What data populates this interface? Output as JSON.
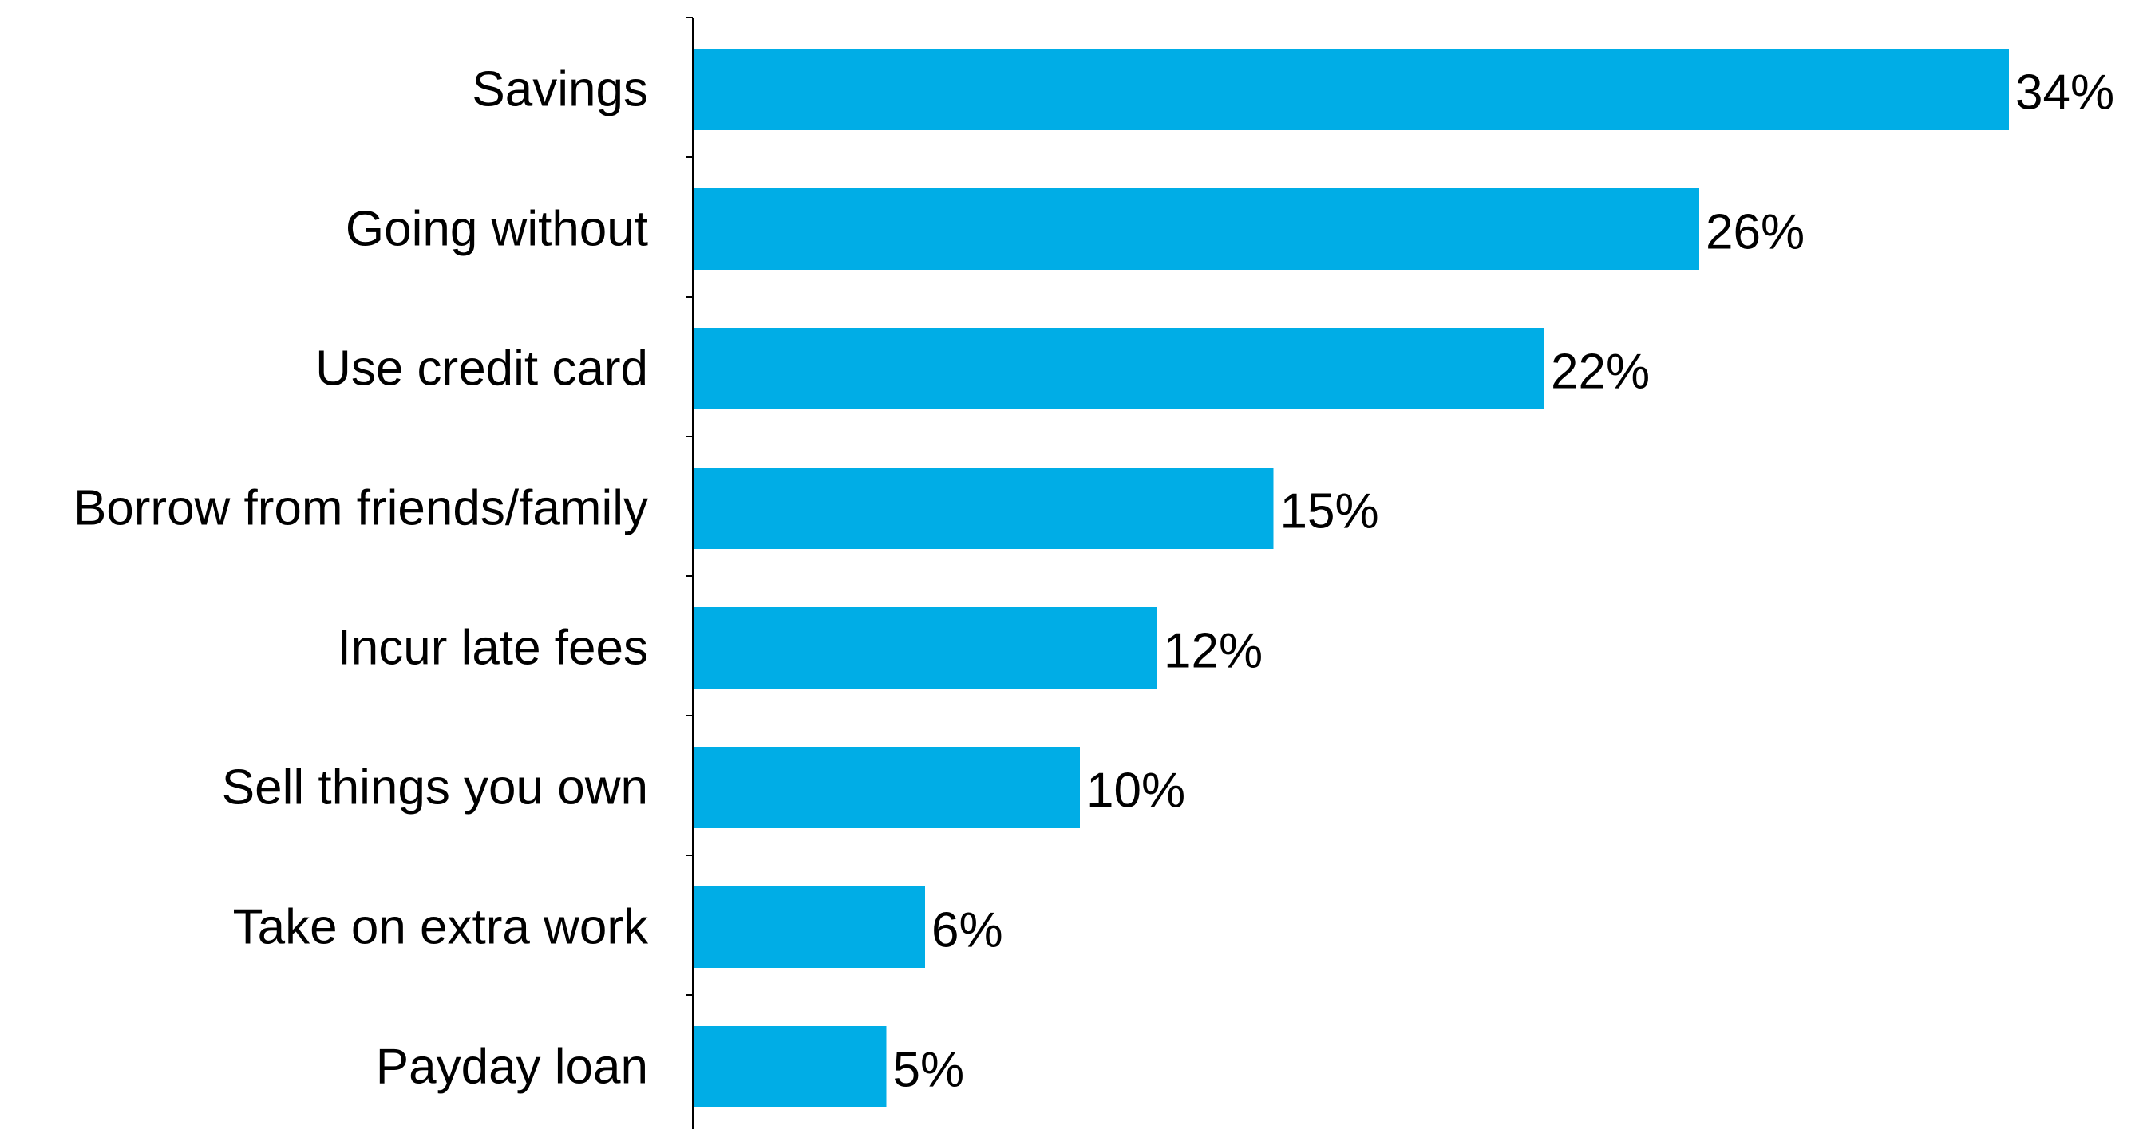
{
  "chart_data": {
    "type": "bar",
    "orientation": "horizontal",
    "categories": [
      "Savings",
      "Going without",
      "Use credit card",
      "Borrow from friends/family",
      "Incur late fees",
      "Sell things you own",
      "Take on extra work",
      "Payday loan"
    ],
    "values": [
      34,
      26,
      22,
      15,
      12,
      10,
      6,
      5
    ],
    "value_labels": [
      "34%",
      "26%",
      "22%",
      "15%",
      "12%",
      "10%",
      "6%",
      "5%"
    ],
    "xlim": [
      0,
      34
    ],
    "grid": false,
    "legend": "none",
    "bar_color": "#00ADE6"
  }
}
